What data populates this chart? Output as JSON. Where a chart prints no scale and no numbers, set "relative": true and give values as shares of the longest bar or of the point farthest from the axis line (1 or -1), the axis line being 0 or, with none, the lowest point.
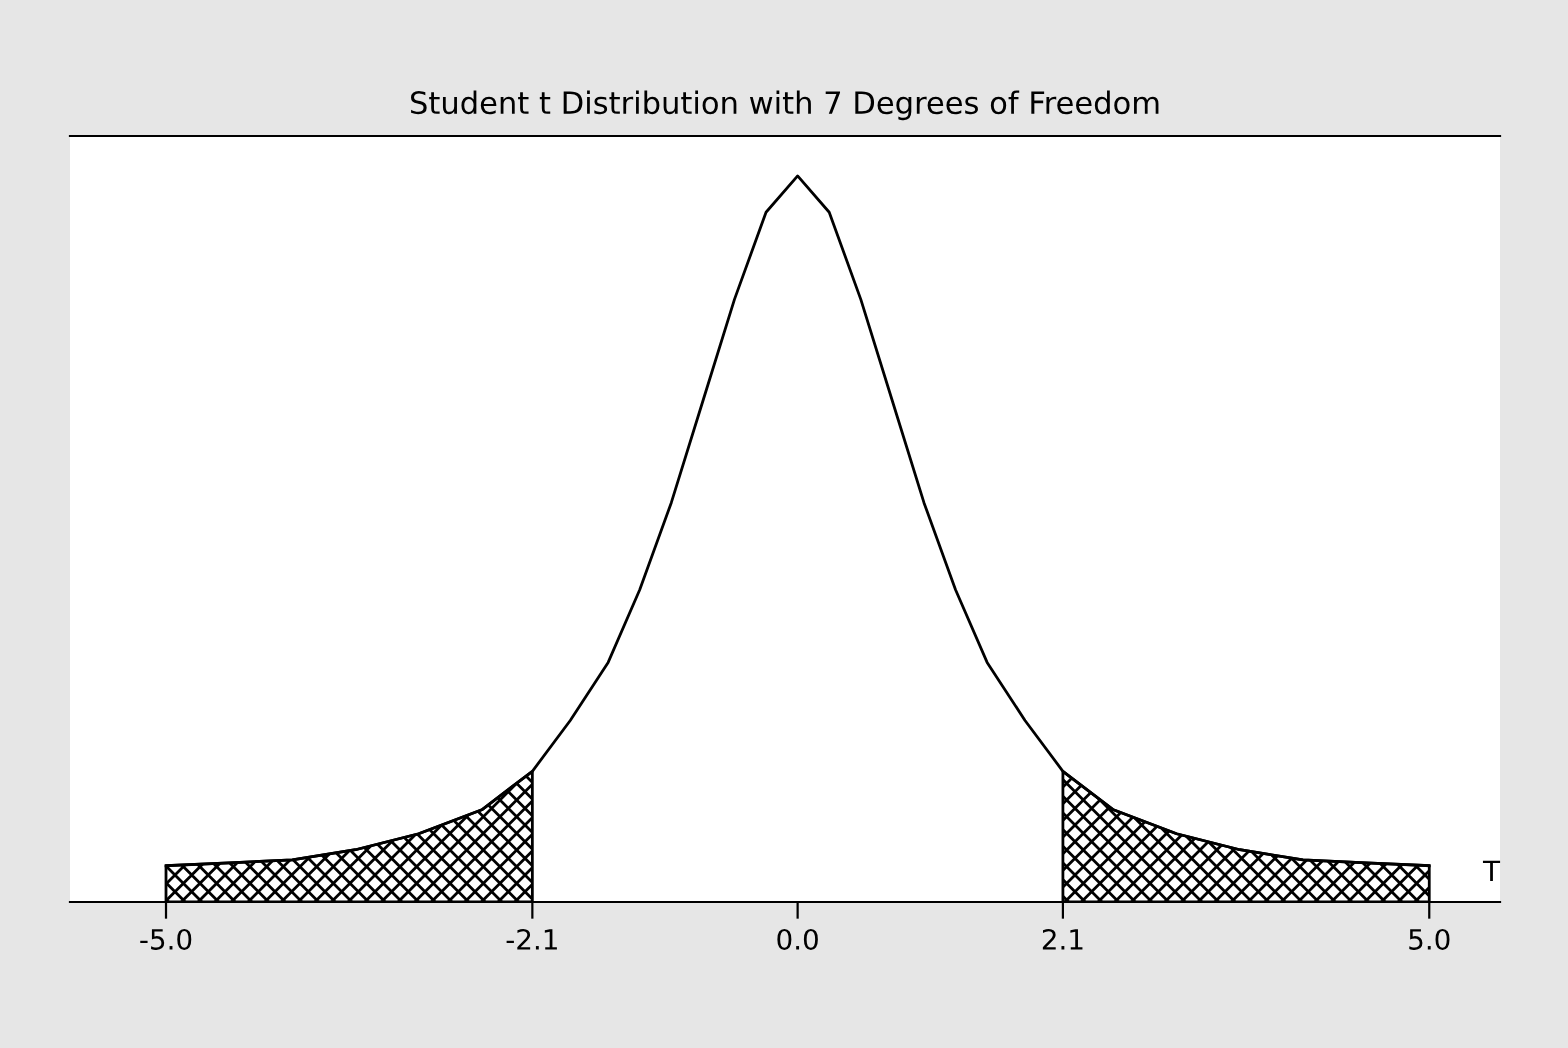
{
  "chart_data": {
    "type": "line",
    "title": "Student t Distribution with 7 Degrees of Freedom",
    "xlabel": "T",
    "relative": true,
    "xlim": [
      -5.76,
      5.56
    ],
    "xticks": [
      {
        "value": -5,
        "label": "-5.0"
      },
      {
        "value": -2.1,
        "label": "-2.1"
      },
      {
        "value": 0,
        "label": "0.0"
      },
      {
        "value": 2.1,
        "label": "2.1"
      },
      {
        "value": 5,
        "label": "5.0"
      }
    ],
    "grid": false,
    "legend": false,
    "marker": "none",
    "line_style": "solid",
    "series": [
      {
        "color": "#000000",
        "x": [
          -5,
          -4.5,
          -4,
          -3.5,
          -3,
          -2.5,
          -2.1,
          -1.8,
          -1.5,
          -1.25,
          -1,
          -0.75,
          -0.5,
          -0.25,
          0,
          0.25,
          0.5,
          0.75,
          1,
          1.25,
          1.5,
          1.8,
          2.1,
          2.5,
          3,
          3.5,
          4,
          4.5,
          5
        ],
        "values": [
          0.05,
          0.054,
          0.058,
          0.072,
          0.094,
          0.127,
          0.18,
          0.25,
          0.33,
          0.43,
          0.55,
          0.69,
          0.83,
          0.95,
          1,
          0.95,
          0.83,
          0.69,
          0.55,
          0.43,
          0.33,
          0.25,
          0.18,
          0.127,
          0.094,
          0.072,
          0.058,
          0.054,
          0.05
        ]
      },
      {
        "type": "area",
        "color": "#000000",
        "x": [
          -5,
          -4.5,
          -4,
          -3.5,
          -3,
          -2.5,
          -2.1
        ],
        "values": [
          0.05,
          0.054,
          0.058,
          0.072,
          0.094,
          0.127,
          0.18
        ]
      },
      {
        "type": "area",
        "color": "#000000",
        "x": [
          2.1,
          2.5,
          3,
          3.5,
          4,
          4.5,
          5
        ],
        "values": [
          0.18,
          0.127,
          0.094,
          0.072,
          0.058,
          0.054,
          0.05
        ]
      }
    ]
  }
}
